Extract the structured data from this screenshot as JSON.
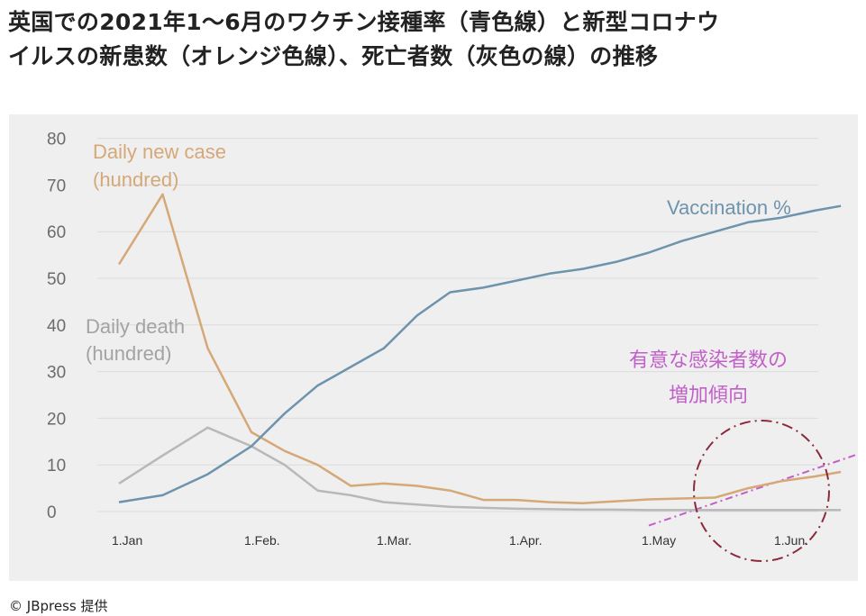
{
  "headline": {
    "line1": "英国での2021年1～6月のワクチン接種率（青色線）と新型コロナウ",
    "line2": "イルスの新患数（オレンジ色線）、死亡者数（灰色の線）の推移"
  },
  "credit": "© JBpress 提供",
  "chart_data": {
    "type": "line",
    "x_tick_labels": [
      "1.Jan",
      "1.Feb.",
      "1.Mar.",
      "1.Apr.",
      "1.May",
      "1.Jun."
    ],
    "x_tick_positions": [
      0,
      1,
      2,
      3,
      4,
      5
    ],
    "x_range": [
      0,
      5.5
    ],
    "y_ticks": [
      0,
      10,
      20,
      30,
      40,
      50,
      60,
      70,
      80
    ],
    "ylim": [
      0,
      80
    ],
    "grid": true,
    "series": [
      {
        "name": "Vaccination %",
        "color": "#6e93ad",
        "x": [
          0,
          0.33,
          0.67,
          1,
          1.25,
          1.5,
          1.75,
          2,
          2.25,
          2.5,
          2.75,
          3,
          3.25,
          3.5,
          3.75,
          4,
          4.25,
          4.5,
          4.75,
          5,
          5.25,
          5.45
        ],
        "y": [
          2,
          3.5,
          8,
          14,
          21,
          27,
          31,
          35,
          42,
          47,
          48,
          49.5,
          51,
          52,
          53.5,
          55.5,
          58,
          60,
          62,
          63,
          64.5,
          65.5
        ]
      },
      {
        "name": "Daily new case\n(hundred)",
        "color": "#d5a878",
        "x": [
          0,
          0.33,
          0.67,
          1,
          1.25,
          1.5,
          1.75,
          2,
          2.25,
          2.5,
          2.75,
          3,
          3.25,
          3.5,
          3.75,
          4,
          4.25,
          4.5,
          4.75,
          5,
          5.25,
          5.45
        ],
        "y": [
          53,
          68,
          35,
          17,
          13,
          10,
          5.5,
          6,
          5.5,
          4.5,
          2.5,
          2.5,
          2,
          1.8,
          2.2,
          2.6,
          2.8,
          3,
          5,
          6.5,
          7.5,
          8.5
        ]
      },
      {
        "name": "Daily death\n(hundred)",
        "color": "#b8b8b8",
        "x": [
          0,
          0.33,
          0.67,
          1,
          1.25,
          1.5,
          1.75,
          2,
          2.25,
          2.5,
          2.75,
          3,
          3.25,
          3.5,
          3.75,
          4,
          4.25,
          4.5,
          4.75,
          5,
          5.25,
          5.45
        ],
        "y": [
          6,
          12,
          18,
          14,
          10,
          4.5,
          3.5,
          2,
          1.5,
          1,
          0.8,
          0.6,
          0.5,
          0.4,
          0.4,
          0.3,
          0.3,
          0.3,
          0.3,
          0.3,
          0.3,
          0.3
        ]
      }
    ],
    "annotations": {
      "trend_note": "有意な感染者数の\n増加傾向",
      "trend_color": "#c160c8",
      "circle_color": "#8a2a3c",
      "trend_line": {
        "x": [
          4,
          5.6
        ],
        "y": [
          -3,
          12.5
        ]
      }
    }
  }
}
